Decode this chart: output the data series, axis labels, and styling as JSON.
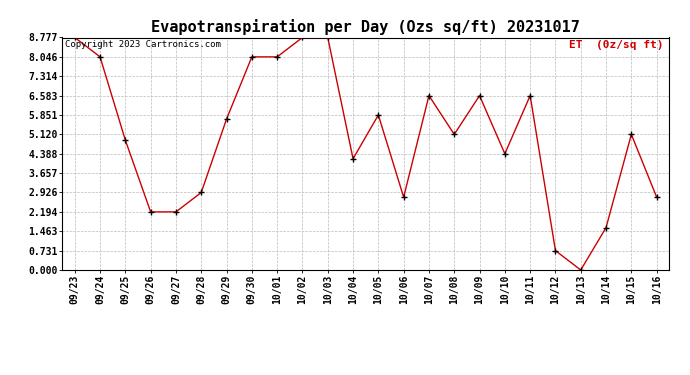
{
  "title": "Evapotranspiration per Day (Ozs sq/ft) 20231017",
  "copyright_text": "Copyright 2023 Cartronics.com",
  "legend_label": "ET  (0z/sq ft)",
  "dates": [
    "09/23",
    "09/24",
    "09/25",
    "09/26",
    "09/27",
    "09/28",
    "09/29",
    "09/30",
    "10/01",
    "10/02",
    "10/03",
    "10/04",
    "10/05",
    "10/06",
    "10/07",
    "10/08",
    "10/09",
    "10/10",
    "10/11",
    "10/12",
    "10/13",
    "10/14",
    "10/15",
    "10/16"
  ],
  "values": [
    8.777,
    8.046,
    4.9,
    2.194,
    2.194,
    2.926,
    5.7,
    8.046,
    8.046,
    8.777,
    8.777,
    4.2,
    5.851,
    2.75,
    6.583,
    5.12,
    6.583,
    4.388,
    6.583,
    0.731,
    0.0,
    1.6,
    5.12,
    2.75
  ],
  "yticks": [
    0.0,
    0.731,
    1.463,
    2.194,
    2.926,
    3.657,
    4.388,
    5.12,
    5.851,
    6.583,
    7.314,
    8.046,
    8.777
  ],
  "ylim": [
    0.0,
    8.777
  ],
  "line_color": "#cc0000",
  "marker_color": "#000000",
  "bg_color": "#ffffff",
  "grid_color": "#bbbbbb",
  "title_fontsize": 11,
  "axis_fontsize": 7,
  "copyright_fontsize": 6.5,
  "legend_fontsize": 8
}
